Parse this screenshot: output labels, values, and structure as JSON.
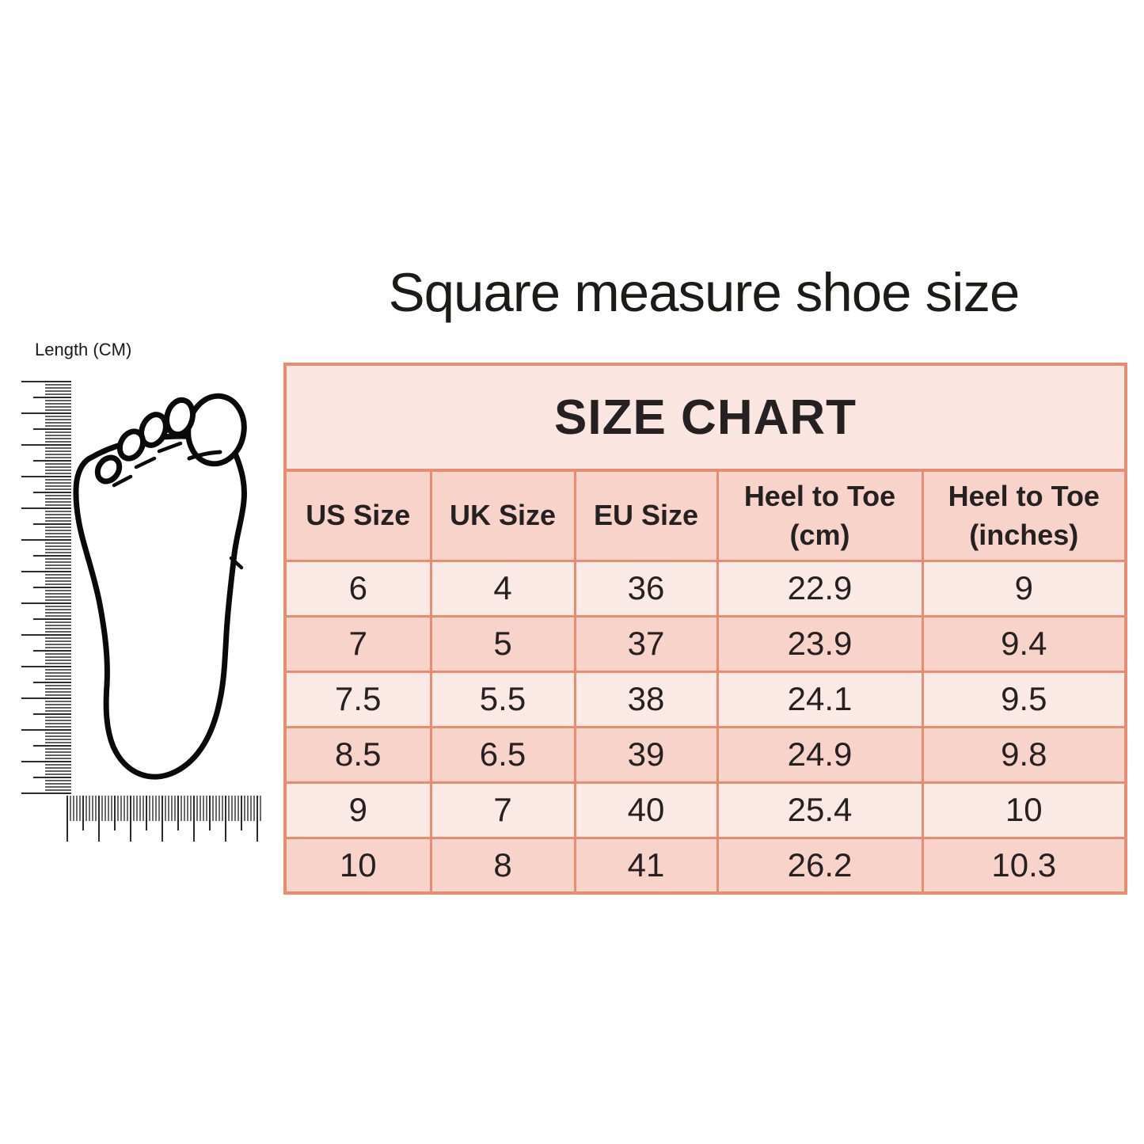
{
  "title": "Square measure shoe size",
  "measure_figure": {
    "ruler_label": "Length (CM)",
    "icons": [
      "vertical-ruler-icon",
      "horizontal-ruler-icon",
      "foot-outline-icon"
    ]
  },
  "size_chart": {
    "heading": "SIZE CHART",
    "columns": [
      "US Size",
      "UK Size",
      "EU Size",
      "Heel to Toe (cm)",
      "Heel to Toe (inches)"
    ],
    "rows": [
      [
        "6",
        "4",
        "36",
        "22.9",
        "9"
      ],
      [
        "7",
        "5",
        "37",
        "23.9",
        "9.4"
      ],
      [
        "7.5",
        "5.5",
        "38",
        "24.1",
        "9.5"
      ],
      [
        "8.5",
        "6.5",
        "39",
        "24.9",
        "9.8"
      ],
      [
        "9",
        "7",
        "40",
        "25.4",
        "10"
      ],
      [
        "10",
        "8",
        "41",
        "26.2",
        "10.3"
      ]
    ]
  },
  "colors": {
    "page_bg": "#ffffff",
    "table_border": "#e78b71",
    "title_row_bg": "#fbe5e1",
    "header_row_bg": "#f8d3ca",
    "row_light_bg": "#fbe9e5",
    "row_dark_bg": "#f8d3ca",
    "text": "#252122"
  }
}
